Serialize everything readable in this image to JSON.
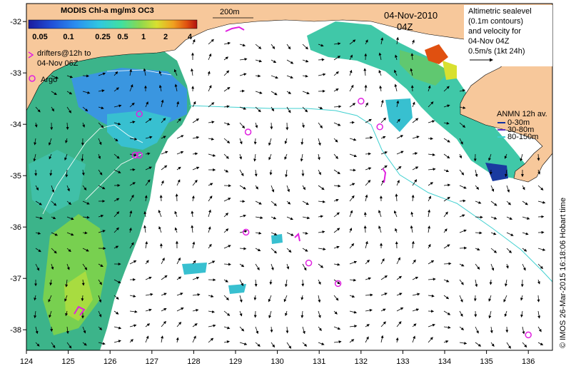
{
  "map": {
    "colorbar": {
      "title": "MODIS Chl-a mg/m3 OC3",
      "ticks": [
        "0.05",
        "0.1",
        "0.25",
        "0.5",
        "1",
        "2",
        "4"
      ],
      "colors": [
        "#1a1a9e",
        "#2050d8",
        "#2a8ef0",
        "#30c8e0",
        "#40e0a0",
        "#8ad850",
        "#d8e030",
        "#f0a020",
        "#e05010",
        "#b01010"
      ]
    },
    "isobath_label": "200m",
    "date": "04-Nov-2010",
    "time": "04Z",
    "altimetry": {
      "line1": "Altimetric sealevel",
      "line2": "(0.1m contours)",
      "line3": "and velocity for",
      "line4": "04-Nov 04Z",
      "scale": "0.5m/s (1kt 24h)"
    },
    "drifters": {
      "line1": "drifters@12h to",
      "line2": "04-Nov 06Z",
      "argo": "Argo"
    },
    "anmn": {
      "title": "ANMN 12h av.",
      "items": [
        "0-30m",
        "30-80m",
        "80-150m"
      ],
      "colors": [
        "#1030a0",
        "#6030c0",
        "#40d0d0"
      ]
    },
    "credit": "© IMOS 26-Mar-2015 16:18:06 Hobart time",
    "x_ticks": [
      "124",
      "125",
      "126",
      "127",
      "128",
      "129",
      "130",
      "131",
      "132",
      "133",
      "134",
      "135",
      "136"
    ],
    "y_ticks": [
      "-32",
      "-33",
      "-34",
      "-35",
      "-36",
      "-37",
      "-38"
    ],
    "land_color": "#f7c89b",
    "argo_color": "#e020e0",
    "argo_floats": [
      {
        "lon": 126.7,
        "lat": -33.8
      },
      {
        "lon": 126.6,
        "lat": -34.6
      },
      {
        "lon": 126.7,
        "lat": -34.6
      },
      {
        "lon": 129.3,
        "lat": -34.15
      },
      {
        "lon": 132.0,
        "lat": -33.55
      },
      {
        "lon": 132.45,
        "lat": -34.05
      },
      {
        "lon": 129.25,
        "lat": -36.1
      },
      {
        "lon": 130.75,
        "lat": -36.7
      },
      {
        "lon": 131.45,
        "lat": -37.1
      },
      {
        "lon": 136.0,
        "lat": -38.1
      }
    ]
  }
}
